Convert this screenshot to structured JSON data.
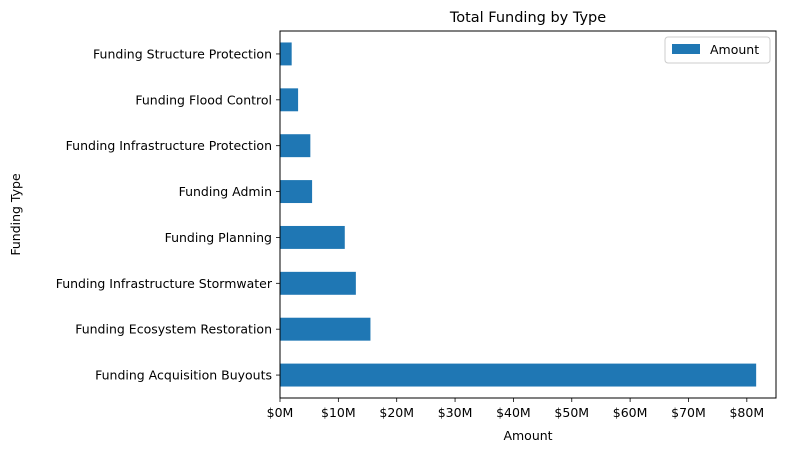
{
  "chart_data": {
    "type": "bar",
    "orientation": "horizontal",
    "title": "Total Funding by Type",
    "xlabel": "Amount",
    "ylabel": "Funding Type",
    "xlim": [
      0,
      85
    ],
    "x_unit": "millions of dollars",
    "x_ticks": [
      {
        "value": 0,
        "label": "$0M"
      },
      {
        "value": 10,
        "label": "$10M"
      },
      {
        "value": 20,
        "label": "$20M"
      },
      {
        "value": 30,
        "label": "$30M"
      },
      {
        "value": 40,
        "label": "$40M"
      },
      {
        "value": 50,
        "label": "$50M"
      },
      {
        "value": 60,
        "label": "$60M"
      },
      {
        "value": 70,
        "label": "$70M"
      },
      {
        "value": 80,
        "label": "$80M"
      }
    ],
    "categories": [
      "Funding Acquisition Buyouts",
      "Funding Ecosystem Restoration",
      "Funding Infrastructure Stormwater",
      "Funding Planning",
      "Funding Admin",
      "Funding Infrastructure Protection",
      "Funding Flood Control",
      "Funding Structure Protection"
    ],
    "series": [
      {
        "name": "Amount",
        "color": "#1f77b4",
        "values": [
          81.6,
          15.5,
          13.0,
          11.1,
          5.5,
          5.2,
          3.1,
          2.0
        ]
      }
    ],
    "legend": {
      "position": "top-right",
      "entries": [
        "Amount"
      ]
    },
    "grid": false
  }
}
